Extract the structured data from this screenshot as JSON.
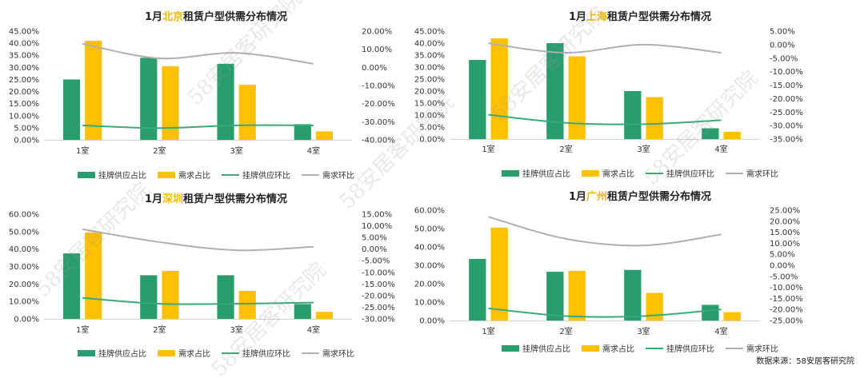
{
  "colors": {
    "supply_bar": "#2a9d6f",
    "demand_bar": "#ffc000",
    "supply_line": "#3aaa78",
    "demand_line": "#b0b0b0",
    "city_highlight": "#f5b800"
  },
  "legend": {
    "supply_share": "挂牌供应占比",
    "demand_share": "需求占比",
    "supply_mom": "挂牌供应环比",
    "demand_mom": "需求环比"
  },
  "footnote": "数据来源：58安居客研究院",
  "watermark": "58安居客研究院",
  "chart_data": [
    {
      "type": "bar",
      "title_prefix": "1月",
      "city": "北京",
      "title_suffix": "租赁户型供需分布情况",
      "categories": [
        "1室",
        "2室",
        "3室",
        "4室"
      ],
      "series": [
        {
          "name": "挂牌供应占比",
          "type": "bar",
          "axis": "left",
          "values": [
            25.0,
            34.0,
            31.5,
            6.5
          ]
        },
        {
          "name": "需求占比",
          "type": "bar",
          "axis": "left",
          "values": [
            41.0,
            30.5,
            22.8,
            3.5
          ]
        },
        {
          "name": "挂牌供应环比",
          "type": "line",
          "axis": "right",
          "values": [
            -32.0,
            -33.5,
            -32.0,
            -32.0
          ]
        },
        {
          "name": "需求环比",
          "type": "line",
          "axis": "right",
          "values": [
            13.0,
            5.0,
            8.0,
            2.0
          ]
        }
      ],
      "left_axis": {
        "min": 0,
        "max": 45,
        "step": 5,
        "ticks": [
          "0.00%",
          "5.00%",
          "10.00%",
          "15.00%",
          "20.00%",
          "25.00%",
          "30.00%",
          "35.00%",
          "40.00%",
          "45.00%"
        ]
      },
      "right_axis": {
        "min": -40,
        "max": 20,
        "step": 10,
        "ticks": [
          "-40.00%",
          "-30.00%",
          "-20.00%",
          "-10.00%",
          "0.00%",
          "10.00%",
          "20.00%"
        ]
      }
    },
    {
      "type": "bar",
      "title_prefix": "1月",
      "city": "上海",
      "title_suffix": "租赁户型供需分布情况",
      "categories": [
        "1室",
        "2室",
        "3室",
        "4室"
      ],
      "series": [
        {
          "name": "挂牌供应占比",
          "type": "bar",
          "axis": "left",
          "values": [
            33.0,
            40.0,
            20.0,
            4.5
          ]
        },
        {
          "name": "需求占比",
          "type": "bar",
          "axis": "left",
          "values": [
            42.0,
            34.5,
            17.5,
            3.0
          ]
        },
        {
          "name": "挂牌供应环比",
          "type": "line",
          "axis": "right",
          "values": [
            -26.0,
            -29.0,
            -29.5,
            -28.0
          ]
        },
        {
          "name": "需求环比",
          "type": "line",
          "axis": "right",
          "values": [
            0.5,
            -3.0,
            0.0,
            -3.0
          ]
        }
      ],
      "left_axis": {
        "min": 0,
        "max": 45,
        "step": 5,
        "ticks": [
          "0.00%",
          "5.00%",
          "10.00%",
          "15.00%",
          "20.00%",
          "25.00%",
          "30.00%",
          "35.00%",
          "40.00%",
          "45.00%"
        ]
      },
      "right_axis": {
        "min": -35,
        "max": 5,
        "step": 5,
        "ticks": [
          "-35.00%",
          "-30.00%",
          "-25.00%",
          "-20.00%",
          "-15.00%",
          "-10.00%",
          "-5.00%",
          "0.00%",
          "5.00%"
        ]
      }
    },
    {
      "type": "bar",
      "title_prefix": "1月",
      "city": "深圳",
      "title_suffix": "租赁户型供需分布情况",
      "categories": [
        "1室",
        "2室",
        "3室",
        "4室"
      ],
      "series": [
        {
          "name": "挂牌供应占比",
          "type": "bar",
          "axis": "left",
          "values": [
            37.5,
            25.0,
            25.0,
            8.5
          ]
        },
        {
          "name": "需求占比",
          "type": "bar",
          "axis": "left",
          "values": [
            49.5,
            27.5,
            16.0,
            4.0
          ]
        },
        {
          "name": "挂牌供应环比",
          "type": "line",
          "axis": "right",
          "values": [
            -21.0,
            -23.5,
            -23.5,
            -23.0
          ]
        },
        {
          "name": "需求环比",
          "type": "line",
          "axis": "right",
          "values": [
            8.5,
            3.0,
            -0.5,
            1.0
          ]
        }
      ],
      "left_axis": {
        "min": 0,
        "max": 60,
        "step": 10,
        "ticks": [
          "0.00%",
          "10.00%",
          "20.00%",
          "30.00%",
          "40.00%",
          "50.00%",
          "60.00%"
        ]
      },
      "right_axis": {
        "min": -30,
        "max": 15,
        "step": 5,
        "ticks": [
          "-30.00%",
          "-25.00%",
          "-20.00%",
          "-15.00%",
          "-10.00%",
          "-5.00%",
          "0.00%",
          "5.00%",
          "10.00%",
          "15.00%"
        ]
      }
    },
    {
      "type": "bar",
      "title_prefix": "1月",
      "city": "广州",
      "title_suffix": "租赁户型供需分布情况",
      "categories": [
        "1室",
        "2室",
        "3室",
        "4室"
      ],
      "series": [
        {
          "name": "挂牌供应占比",
          "type": "bar",
          "axis": "left",
          "values": [
            33.5,
            26.5,
            27.5,
            8.5
          ]
        },
        {
          "name": "需求占比",
          "type": "bar",
          "axis": "left",
          "values": [
            50.5,
            27.0,
            15.0,
            4.5
          ]
        },
        {
          "name": "挂牌供应环比",
          "type": "line",
          "axis": "right",
          "values": [
            -19.5,
            -23.0,
            -23.0,
            -20.0
          ]
        },
        {
          "name": "需求环比",
          "type": "line",
          "axis": "right",
          "values": [
            22.0,
            12.0,
            9.0,
            14.0
          ]
        }
      ],
      "left_axis": {
        "min": 0,
        "max": 60,
        "step": 10,
        "ticks": [
          "0.00%",
          "10.00%",
          "20.00%",
          "30.00%",
          "40.00%",
          "50.00%",
          "60.00%"
        ]
      },
      "right_axis": {
        "min": -25,
        "max": 25,
        "step": 5,
        "ticks": [
          "-25.00%",
          "-20.00%",
          "-15.00%",
          "-10.00%",
          "-5.00%",
          "0.00%",
          "5.00%",
          "10.00%",
          "15.00%",
          "20.00%",
          "25.00%"
        ]
      }
    }
  ]
}
